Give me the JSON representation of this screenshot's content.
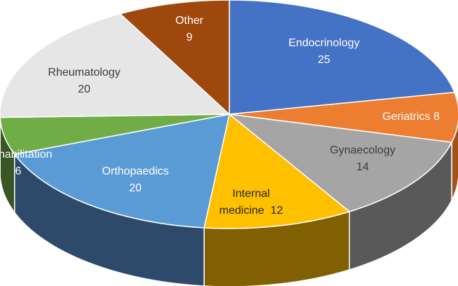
{
  "chart_data": {
    "type": "pie",
    "style": "3d",
    "title": "",
    "slices": [
      {
        "name": "Endocrinology",
        "value": 25,
        "color": "#4472C4",
        "side": "#2F5597",
        "label_lines": [
          "Endocrinology",
          "25"
        ],
        "label_color": "#FFFFFF"
      },
      {
        "name": "Geriatrics",
        "value": 8,
        "color": "#ED7D31",
        "side": "#A0521A",
        "label_lines": [
          "Geriatrics 8"
        ],
        "label_color": "#FFFFFF"
      },
      {
        "name": "Gynaecology",
        "value": 14,
        "color": "#A5A5A5",
        "side": "#595959",
        "label_lines": [
          "Gynaecology",
          "14"
        ],
        "label_color": "#3B3B3B"
      },
      {
        "name": "Internal medicine",
        "value": 12,
        "color": "#FFC000",
        "side": "#806000",
        "label_lines": [
          "Internal",
          "medicine  12"
        ],
        "label_color": "#262626"
      },
      {
        "name": "Orthopaedics",
        "value": 20,
        "color": "#5B9BD5",
        "side": "#2E4A6B",
        "label_lines": [
          "Orthopaedics",
          "20"
        ],
        "label_color": "#FFFFFF"
      },
      {
        "name": "Rehabilitation",
        "value": 6,
        "color": "#70AD47",
        "side": "#385723",
        "label_lines": [
          "Rehabilitation",
          "6"
        ],
        "label_color": "#FFFFFF"
      },
      {
        "name": "Rheumatology",
        "value": 20,
        "color": "#E7E6E6",
        "side": "#8C8C8C",
        "label_lines": [
          "Rheumatology",
          "20"
        ],
        "label_color": "#3B3B3B"
      },
      {
        "name": "Other",
        "value": 9,
        "color": "#9E480E",
        "side": "#5E2A08",
        "label_lines": [
          "Other",
          "9"
        ],
        "label_color": "#FFFFFF"
      }
    ]
  }
}
